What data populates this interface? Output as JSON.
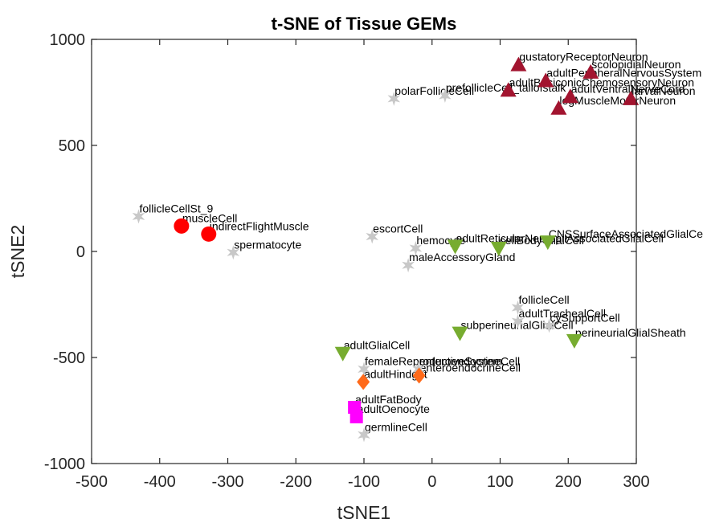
{
  "chart_data": {
    "type": "scatter",
    "title": "t-SNE of Tissue GEMs",
    "xlabel": "tSNE1",
    "ylabel": "tSNE2",
    "xlim": [
      -500,
      300
    ],
    "ylim": [
      -1000,
      1000
    ],
    "x_ticks": [
      -500,
      -400,
      -300,
      -200,
      -100,
      0,
      100,
      200,
      300
    ],
    "y_ticks": [
      -1000,
      -500,
      0,
      500,
      1000
    ],
    "x_tick_labels": [
      "-500",
      "-400",
      "-300",
      "-200",
      "-100",
      "0",
      "100",
      "200",
      "300"
    ],
    "y_tick_labels": [
      "-1000",
      "-500",
      "0",
      "500",
      "1000"
    ],
    "grid": false,
    "series": [
      {
        "marker": "star",
        "color": "#c8c8c8",
        "points": [
          {
            "label": "follicleCellSt_9",
            "x": -431,
            "y": 165
          },
          {
            "label": "spermatocyte",
            "x": -292,
            "y": -5
          },
          {
            "label": "escortCell",
            "x": -88,
            "y": 70
          },
          {
            "label": "hemocyte",
            "x": -24,
            "y": 15
          },
          {
            "label": "maleAccessoryGland",
            "x": -35,
            "y": -65
          },
          {
            "label": "polarFollicleCell",
            "x": -56,
            "y": 720
          },
          {
            "label": "prefollicleCell_tailofstalk",
            "x": 19,
            "y": 735
          },
          {
            "label": "follicleCell",
            "x": 126,
            "y": -265
          },
          {
            "label": "adultTrachealCell",
            "x": 126,
            "y": -330
          },
          {
            "label": "cySupportCell",
            "x": 172,
            "y": -350
          },
          {
            "label": "femaleReproductiveSystem",
            "x": -100,
            "y": -555
          },
          {
            "label": "enteroendocrineCell",
            "x": -20,
            "y": -555
          },
          {
            "label": "germlineCell",
            "x": -100,
            "y": -865
          }
        ]
      },
      {
        "marker": "circle",
        "color": "#ff0000",
        "points": [
          {
            "label": "muscleCell",
            "x": -368,
            "y": 120
          },
          {
            "label": "indirectFlightMuscle",
            "x": -328,
            "y": 82
          }
        ]
      },
      {
        "marker": "triangle-up",
        "color": "#a2142f",
        "points": [
          {
            "label": "gustatoryReceptorNeuron",
            "x": 127,
            "y": 880
          },
          {
            "label": "scolopidialNeuron",
            "x": 233,
            "y": 845
          },
          {
            "label": "adultPeripheralNervousSystem",
            "x": 167,
            "y": 805
          },
          {
            "label": "adultBasiconicChemosensoryNeuron",
            "x": 112,
            "y": 760
          },
          {
            "label": "adultVentralNerveCord",
            "x": 203,
            "y": 730
          },
          {
            "label": "larvalNeuron",
            "x": 292,
            "y": 720
          },
          {
            "label": "legMuscleMotorNeuron",
            "x": 186,
            "y": 675
          }
        ]
      },
      {
        "marker": "triangle-down",
        "color": "#77ac30",
        "points": [
          {
            "label": "adultReticularNeuropilAssociatedGlialCell",
            "x": 34,
            "y": 25
          },
          {
            "label": "cellBodyGlialCell",
            "x": 98,
            "y": 15
          },
          {
            "label": "CNSSurfaceAssociatedGlialCell",
            "x": 170,
            "y": 45
          },
          {
            "label": "subperineurialGlialCell",
            "x": 41,
            "y": -385
          },
          {
            "label": "perineurialGlialSheath",
            "x": 209,
            "y": -420
          },
          {
            "label": "adultGlialCell",
            "x": -131,
            "y": -480
          }
        ]
      },
      {
        "marker": "diamond",
        "color": "#ff6a1a",
        "points": [
          {
            "label": "adultHindgut",
            "x": -101,
            "y": -615
          },
          {
            "label": "enteroendocrineCell",
            "x": -19,
            "y": -585
          }
        ]
      },
      {
        "marker": "square",
        "color": "#ff00ff",
        "points": [
          {
            "label": "adultFatBody",
            "x": -114,
            "y": -735
          },
          {
            "label": "adultOenocyte",
            "x": -111,
            "y": -780
          }
        ]
      }
    ]
  }
}
